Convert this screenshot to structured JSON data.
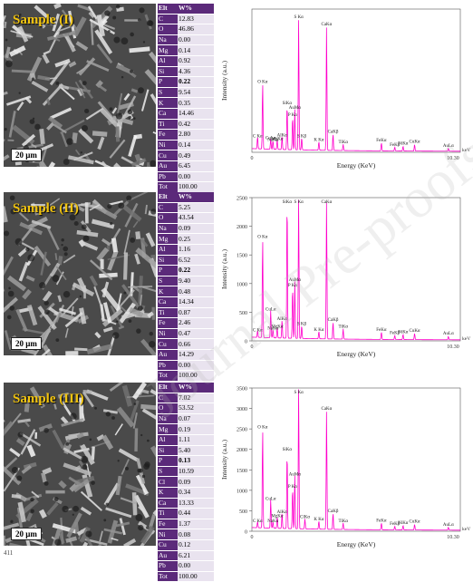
{
  "panels": [
    {
      "sample_label": "Sample (I)",
      "scale": "20 μm",
      "table": {
        "header": [
          "Elt",
          "W%"
        ],
        "rows": [
          [
            "C",
            "12.83"
          ],
          [
            "O",
            "46.86"
          ],
          [
            "Na",
            "0.00"
          ],
          [
            "Mg",
            "0.14"
          ],
          [
            "Al",
            "0.92"
          ],
          [
            "Si",
            "4.36"
          ],
          [
            "P",
            "0.22"
          ],
          [
            "S",
            "9.54"
          ],
          [
            "K",
            "0.35"
          ],
          [
            "Ca",
            "14.46"
          ],
          [
            "Ti",
            "0.42"
          ],
          [
            "Fe",
            "2.80"
          ],
          [
            "Ni",
            "0.14"
          ],
          [
            "Cu",
            "0.49"
          ],
          [
            "Au",
            "6.45"
          ],
          [
            "Pb",
            "0.00"
          ],
          [
            "Tot",
            "100.00"
          ]
        ],
        "highlight": "P"
      }
    },
    {
      "sample_label": "Sample (II)",
      "scale": "20 μm",
      "table": {
        "header": [
          "Elt",
          "W%"
        ],
        "rows": [
          [
            "C",
            "5.25"
          ],
          [
            "O",
            "43.54"
          ],
          [
            "Na",
            "0.09"
          ],
          [
            "Mg",
            "0.25"
          ],
          [
            "Al",
            "1.16"
          ],
          [
            "Si",
            "6.52"
          ],
          [
            "P",
            "0.22"
          ],
          [
            "S",
            "9.40"
          ],
          [
            "K",
            "0.48"
          ],
          [
            "Ca",
            "14.34"
          ],
          [
            "Ti",
            "0.87"
          ],
          [
            "Fe",
            "2.46"
          ],
          [
            "Ni",
            "0.47"
          ],
          [
            "Cu",
            "0.66"
          ],
          [
            "Au",
            "14.29"
          ],
          [
            "Pb",
            "0.00"
          ],
          [
            "Tot",
            "100.00"
          ]
        ],
        "highlight": "P"
      }
    },
    {
      "sample_label": "Sample (III)",
      "scale": "20 μm",
      "table": {
        "header": [
          "Elt",
          "W%"
        ],
        "rows": [
          [
            "C",
            "7.02"
          ],
          [
            "O",
            "53.52"
          ],
          [
            "Na",
            "0.07"
          ],
          [
            "Mg",
            "0.19"
          ],
          [
            "Al",
            "1.11"
          ],
          [
            "Si",
            "5.40"
          ],
          [
            "P",
            "0.13"
          ],
          [
            "S",
            "10.59"
          ],
          [
            "Cl",
            "0.09"
          ],
          [
            "K",
            "0.34"
          ],
          [
            "Ca",
            "13.33"
          ],
          [
            "Ti",
            "0.44"
          ],
          [
            "Fe",
            "1.37"
          ],
          [
            "Ni",
            "0.08"
          ],
          [
            "Cu",
            "0.12"
          ],
          [
            "Au",
            "6.21"
          ],
          [
            "Pb",
            "0.00"
          ],
          [
            "Tot",
            "100.00"
          ]
        ],
        "highlight": "P"
      }
    }
  ],
  "chart_data": [
    {
      "type": "line",
      "xlabel": "Energy (KeV)",
      "ylabel": "Intensity (a.u.)",
      "xlim": [
        0,
        10.3
      ],
      "ylim": [
        0,
        3000
      ],
      "x_ticks": [
        "0",
        "10.30"
      ],
      "y_ticks": [],
      "x_unit_label": "keV",
      "peaks": [
        {
          "energy": 0.28,
          "intensity": 260,
          "label": "C Kα"
        },
        {
          "energy": 0.53,
          "intensity": 1400,
          "label": "O Kα"
        },
        {
          "energy": 0.93,
          "intensity": 220,
          "label": "CuLα"
        },
        {
          "energy": 1.04,
          "intensity": 180,
          "label": "NaKα"
        },
        {
          "energy": 1.25,
          "intensity": 200,
          "label": "MgKα"
        },
        {
          "energy": 1.49,
          "intensity": 280,
          "label": "AlKα"
        },
        {
          "energy": 1.74,
          "intensity": 950,
          "label": "SiKα"
        },
        {
          "energy": 2.01,
          "intensity": 700,
          "label": "P Kα"
        },
        {
          "energy": 2.12,
          "intensity": 850,
          "label": "AuMα"
        },
        {
          "energy": 2.31,
          "intensity": 2750,
          "label": "S Kα"
        },
        {
          "energy": 2.46,
          "intensity": 260,
          "label": "S Kβ"
        },
        {
          "energy": 3.31,
          "intensity": 180,
          "label": "K Kα"
        },
        {
          "energy": 3.69,
          "intensity": 2600,
          "label": "CaKα"
        },
        {
          "energy": 4.01,
          "intensity": 350,
          "label": "CaKβ"
        },
        {
          "energy": 4.51,
          "intensity": 130,
          "label": "TiKα"
        },
        {
          "energy": 6.4,
          "intensity": 170,
          "label": "FeKα"
        },
        {
          "energy": 7.06,
          "intensity": 80,
          "label": "FeKβ"
        },
        {
          "energy": 7.47,
          "intensity": 100,
          "label": "NiKα"
        },
        {
          "energy": 8.04,
          "intensity": 140,
          "label": "CuKα"
        },
        {
          "energy": 9.71,
          "intensity": 60,
          "label": "AuLα"
        }
      ]
    },
    {
      "type": "line",
      "xlabel": "Energy (KeV)",
      "ylabel": "Intensity (a.u.)",
      "xlim": [
        0,
        10.3
      ],
      "ylim": [
        0,
        2500
      ],
      "x_ticks": [
        "0",
        "10.30"
      ],
      "y_ticks": [
        "0",
        "500",
        "1000",
        "1500",
        "2000",
        "2500"
      ],
      "x_unit_label": "keV",
      "peaks": [
        {
          "energy": 0.28,
          "intensity": 120,
          "label": "C Kα"
        },
        {
          "energy": 0.53,
          "intensity": 1750,
          "label": "O Kα"
        },
        {
          "energy": 0.93,
          "intensity": 480,
          "label": "CuLα"
        },
        {
          "energy": 1.04,
          "intensity": 150,
          "label": "NaKα"
        },
        {
          "energy": 1.25,
          "intensity": 180,
          "label": "MgKα"
        },
        {
          "energy": 1.49,
          "intensity": 320,
          "label": "AlKα"
        },
        {
          "energy": 1.74,
          "intensity": 2450,
          "label": "SiKα"
        },
        {
          "energy": 2.01,
          "intensity": 900,
          "label": "P Kα"
        },
        {
          "energy": 2.12,
          "intensity": 1000,
          "label": "AuMα"
        },
        {
          "energy": 2.31,
          "intensity": 2450,
          "label": "S Kα"
        },
        {
          "energy": 2.46,
          "intensity": 230,
          "label": "S Kβ"
        },
        {
          "energy": 3.31,
          "intensity": 130,
          "label": "K Kα"
        },
        {
          "energy": 3.69,
          "intensity": 2400,
          "label": "CaKα"
        },
        {
          "energy": 4.01,
          "intensity": 300,
          "label": "CaKβ"
        },
        {
          "energy": 4.51,
          "intensity": 180,
          "label": "TiKα"
        },
        {
          "energy": 6.4,
          "intensity": 130,
          "label": "FeKα"
        },
        {
          "energy": 7.06,
          "intensity": 70,
          "label": "FeKβ"
        },
        {
          "energy": 7.47,
          "intensity": 90,
          "label": "NiKα"
        },
        {
          "energy": 8.04,
          "intensity": 110,
          "label": "CuKα"
        },
        {
          "energy": 9.71,
          "intensity": 60,
          "label": "AuLα"
        }
      ]
    },
    {
      "type": "line",
      "xlabel": "Energy (KeV)",
      "ylabel": "Intensity (a.u.)",
      "xlim": [
        0,
        10.3
      ],
      "ylim": [
        0,
        3500
      ],
      "x_ticks": [
        "0",
        "10.30"
      ],
      "y_ticks": [
        "0",
        "500",
        "1000",
        "1500",
        "2000",
        "2500",
        "3000",
        "3500"
      ],
      "x_unit_label": "keV",
      "peaks": [
        {
          "energy": 0.28,
          "intensity": 150,
          "label": "C Kα"
        },
        {
          "energy": 0.53,
          "intensity": 2450,
          "label": "O Kα"
        },
        {
          "energy": 0.93,
          "intensity": 700,
          "label": "CuLα"
        },
        {
          "energy": 1.04,
          "intensity": 160,
          "label": "NaKα"
        },
        {
          "energy": 1.25,
          "intensity": 280,
          "label": "MgKα"
        },
        {
          "energy": 1.49,
          "intensity": 380,
          "label": "AlKα"
        },
        {
          "energy": 1.74,
          "intensity": 1900,
          "label": "SiKα"
        },
        {
          "energy": 2.01,
          "intensity": 1000,
          "label": "P Kα"
        },
        {
          "energy": 2.12,
          "intensity": 1300,
          "label": "AuMα"
        },
        {
          "energy": 2.31,
          "intensity": 3450,
          "label": "S Kα"
        },
        {
          "energy": 2.62,
          "intensity": 250,
          "label": "ClKα"
        },
        {
          "energy": 3.31,
          "intensity": 200,
          "label": "K Kα"
        },
        {
          "energy": 3.69,
          "intensity": 2900,
          "label": "CaKα"
        },
        {
          "energy": 4.01,
          "intensity": 400,
          "label": "CaKβ"
        },
        {
          "energy": 4.51,
          "intensity": 160,
          "label": "TiKα"
        },
        {
          "energy": 6.4,
          "intensity": 170,
          "label": "FeKα"
        },
        {
          "energy": 7.06,
          "intensity": 90,
          "label": "FeKβ"
        },
        {
          "energy": 7.47,
          "intensity": 110,
          "label": "NiKα"
        },
        {
          "energy": 8.04,
          "intensity": 140,
          "label": "CuKα"
        },
        {
          "energy": 9.71,
          "intensity": 70,
          "label": "AuLα"
        }
      ]
    }
  ],
  "watermark": "Journal Pre-proofs",
  "footnote": "411",
  "colors": {
    "spectrum": "#ff00cc",
    "table_elt_bg": "#5b2a7a",
    "sample_label": "#f2c40f",
    "scale_border": "#b0202a"
  }
}
